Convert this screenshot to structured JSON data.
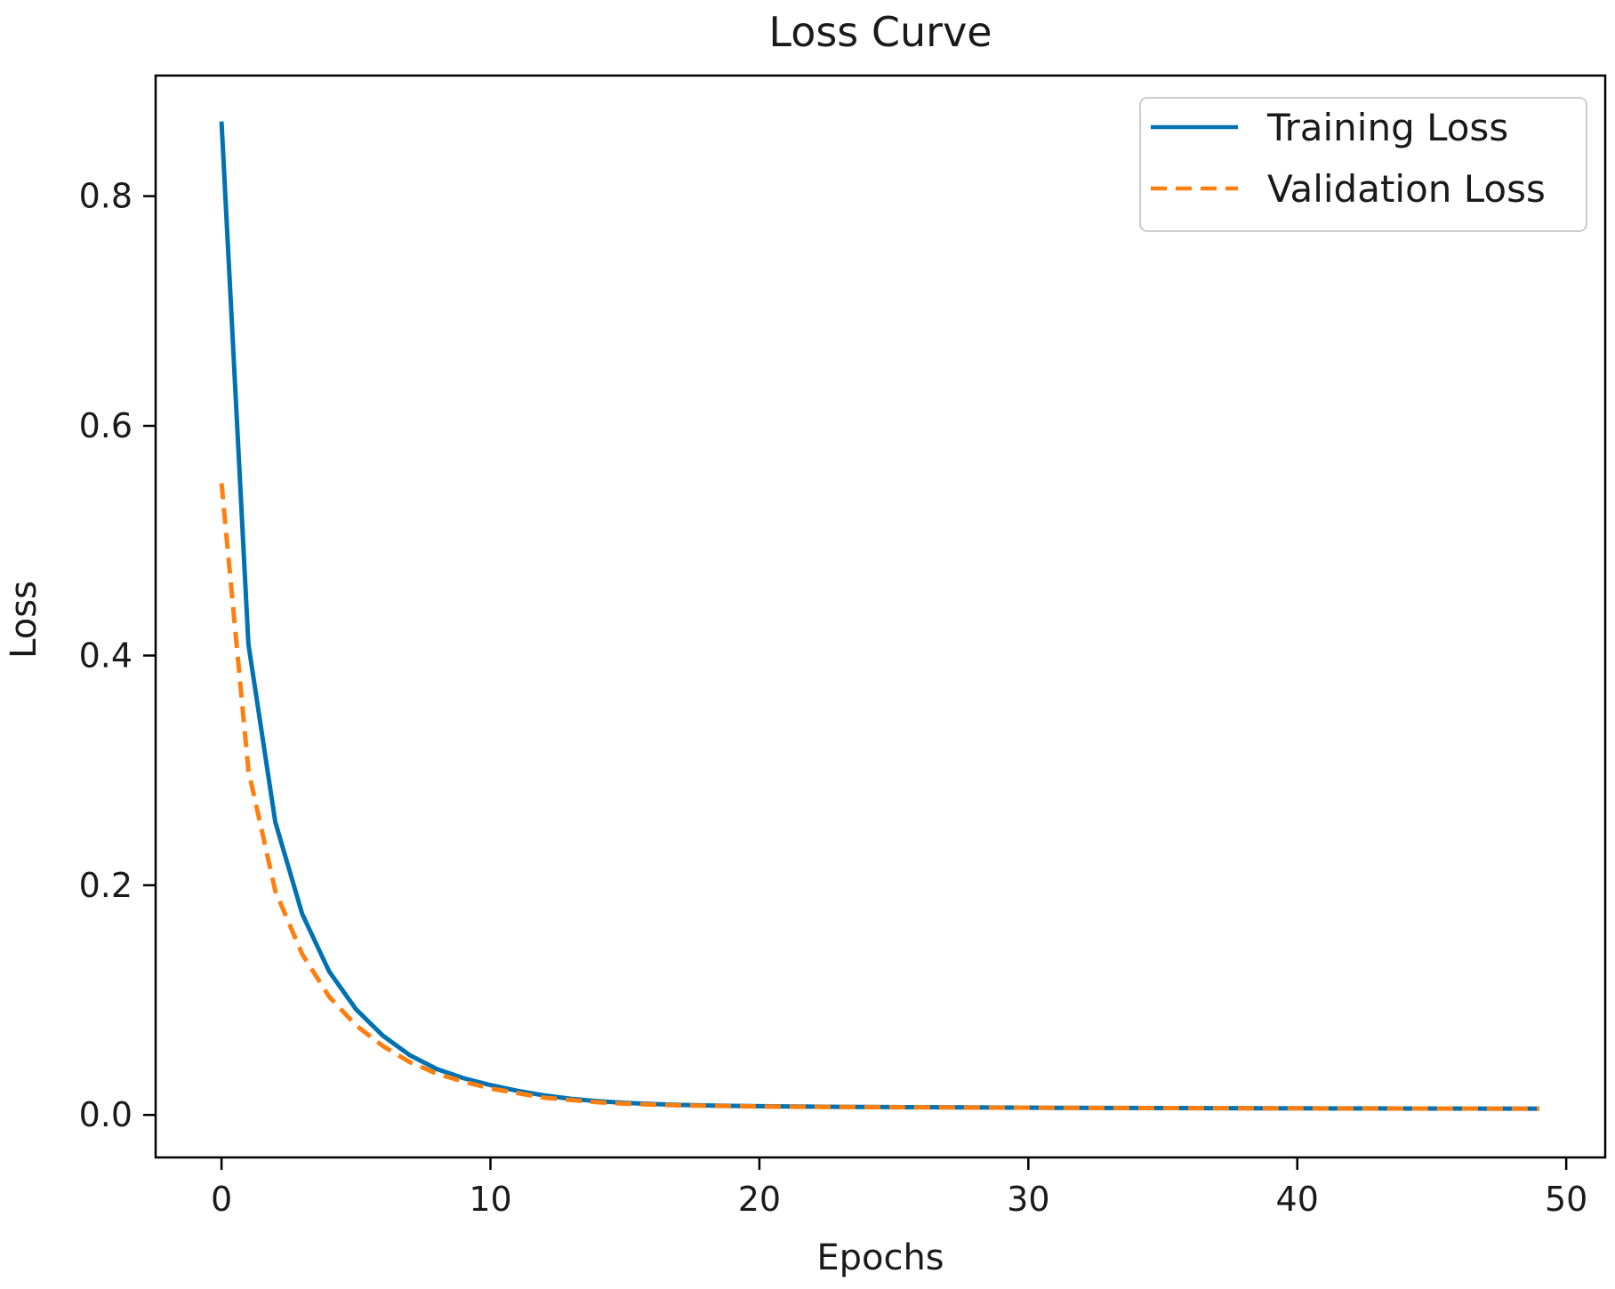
{
  "chart_data": {
    "type": "line",
    "title": "Loss Curve",
    "xlabel": "Epochs",
    "ylabel": "Loss",
    "xlim": [
      -2.45,
      51.45
    ],
    "ylim": [
      -0.037,
      0.905
    ],
    "xticks": [
      0,
      10,
      20,
      30,
      40,
      50
    ],
    "xtick_labels": [
      "0",
      "10",
      "20",
      "30",
      "40",
      "50"
    ],
    "yticks": [
      0.0,
      0.2,
      0.4,
      0.6,
      0.8
    ],
    "ytick_labels": [
      "0.0",
      "0.2",
      "0.4",
      "0.6",
      "0.8"
    ],
    "grid": false,
    "legend_position": "upper right",
    "x": [
      0,
      1,
      2,
      3,
      4,
      5,
      6,
      7,
      8,
      9,
      10,
      11,
      12,
      13,
      14,
      15,
      16,
      17,
      18,
      19,
      20,
      21,
      22,
      23,
      24,
      25,
      26,
      27,
      28,
      29,
      30,
      31,
      32,
      33,
      34,
      35,
      36,
      37,
      38,
      39,
      40,
      41,
      42,
      43,
      44,
      45,
      46,
      47,
      48,
      49
    ],
    "series": [
      {
        "name": "Training Loss",
        "color": "#0072B2",
        "style": "solid",
        "values": [
          0.865,
          0.41,
          0.255,
          0.175,
          0.125,
          0.092,
          0.069,
          0.052,
          0.04,
          0.032,
          0.026,
          0.021,
          0.017,
          0.014,
          0.012,
          0.0105,
          0.0095,
          0.0088,
          0.0083,
          0.0079,
          0.0076,
          0.0074,
          0.0072,
          0.007,
          0.0069,
          0.0068,
          0.0067,
          0.0066,
          0.0065,
          0.0064,
          0.0063,
          0.0062,
          0.0062,
          0.0061,
          0.0061,
          0.006,
          0.006,
          0.0059,
          0.0059,
          0.0058,
          0.0058,
          0.0057,
          0.0057,
          0.0057,
          0.0056,
          0.0056,
          0.0056,
          0.0055,
          0.0055,
          0.0055
        ]
      },
      {
        "name": "Validation Loss",
        "color": "#FF7F0E",
        "style": "dashed",
        "values": [
          0.55,
          0.3,
          0.195,
          0.14,
          0.103,
          0.078,
          0.06,
          0.046,
          0.036,
          0.029,
          0.023,
          0.019,
          0.015,
          0.013,
          0.011,
          0.0098,
          0.009,
          0.0084,
          0.008,
          0.0077,
          0.0074,
          0.0072,
          0.007,
          0.0069,
          0.0068,
          0.0067,
          0.0066,
          0.0065,
          0.0064,
          0.0063,
          0.0063,
          0.0062,
          0.0061,
          0.0061,
          0.006,
          0.006,
          0.0059,
          0.0059,
          0.0058,
          0.0058,
          0.0058,
          0.0057,
          0.0057,
          0.0057,
          0.0056,
          0.0056,
          0.0056,
          0.0055,
          0.0055,
          0.0055
        ]
      }
    ]
  }
}
